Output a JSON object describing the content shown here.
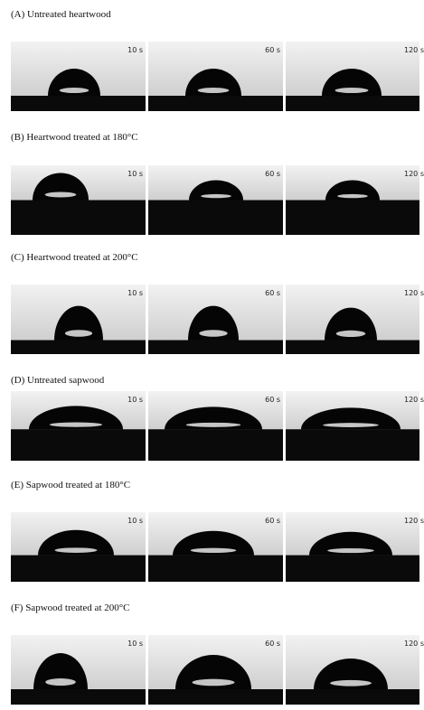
{
  "panels": [
    {
      "label": "(A) Untreated heartwood",
      "frames": [
        {
          "time": "10 s"
        },
        {
          "time": "60 s"
        },
        {
          "time": "120 s"
        }
      ]
    },
    {
      "label": "(B) Heartwood treated at 180°C",
      "frames": [
        {
          "time": "10 s"
        },
        {
          "time": "60 s"
        },
        {
          "time": "120 s"
        }
      ]
    },
    {
      "label": "(C) Heartwood treated at 200°C",
      "frames": [
        {
          "time": "10 s"
        },
        {
          "time": "60 s"
        },
        {
          "time": "120 s"
        }
      ]
    },
    {
      "label": "(D) Untreated sapwood",
      "frames": [
        {
          "time": "10 s"
        },
        {
          "time": "60 s"
        },
        {
          "time": "120 s"
        }
      ]
    },
    {
      "label": "(E) Sapwood treated at 180°C",
      "frames": [
        {
          "time": "10 s"
        },
        {
          "time": "60 s"
        },
        {
          "time": "120 s"
        }
      ]
    },
    {
      "label": "(F) Sapwood treated at 200°C",
      "frames": [
        {
          "time": "10 s"
        },
        {
          "time": "60 s"
        },
        {
          "time": "120 s"
        }
      ]
    }
  ]
}
